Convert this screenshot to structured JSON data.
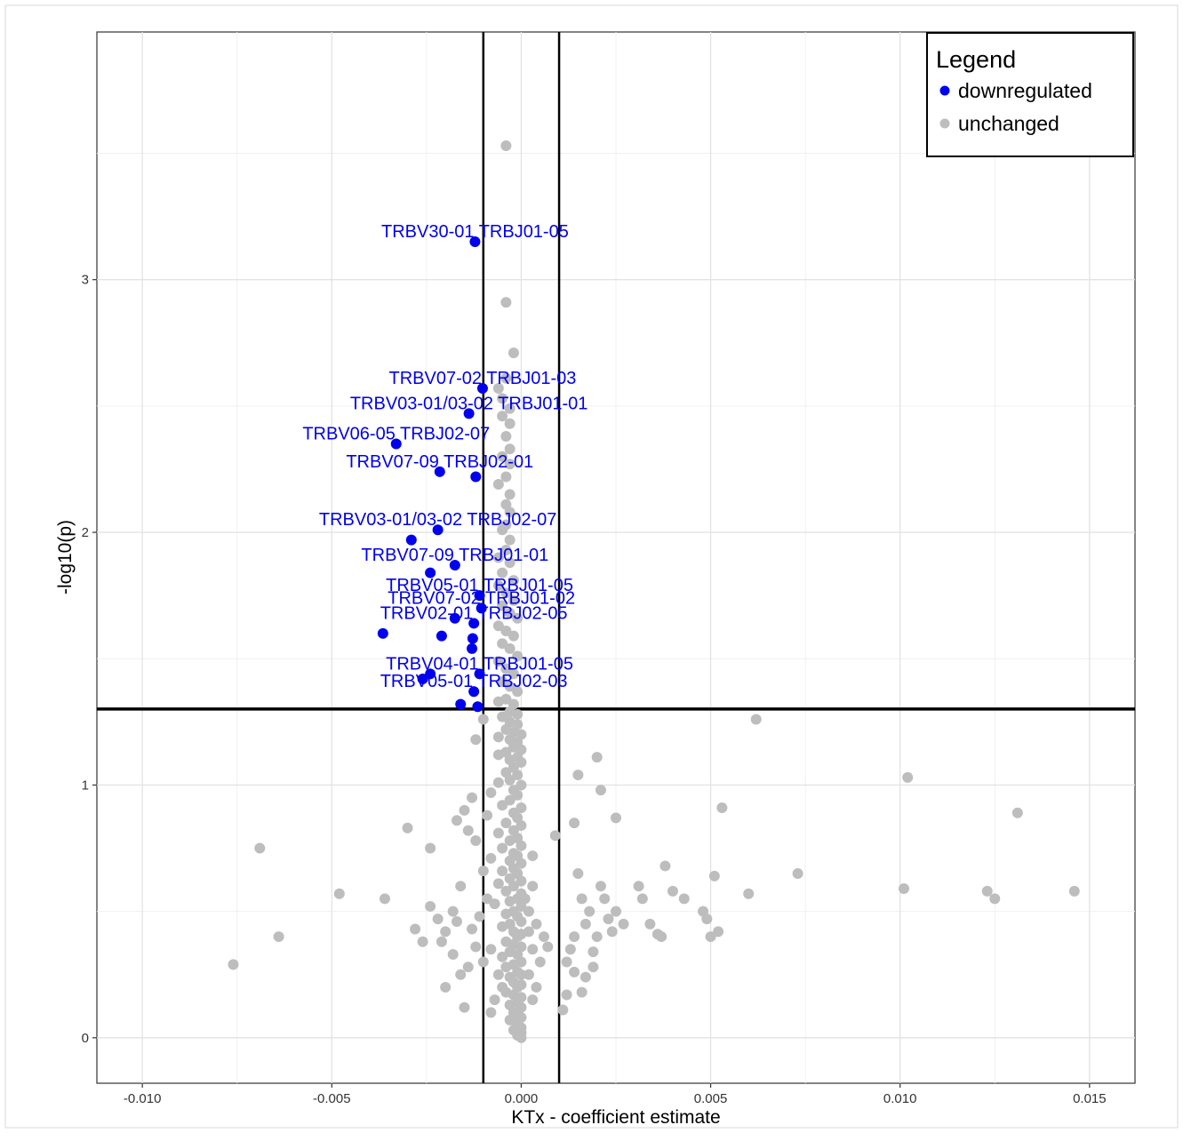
{
  "chart_data": {
    "type": "scatter",
    "xlabel": "KTx - coefficient estimate",
    "ylabel": "-log10(p)",
    "xlim": [
      -0.0112,
      0.0162
    ],
    "ylim": [
      -0.18,
      3.98
    ],
    "x_ticks": [
      -0.01,
      -0.005,
      0.0,
      0.005,
      0.01,
      0.015
    ],
    "x_tick_labels": [
      "-0.010",
      "-0.005",
      "0.000",
      "0.005",
      "0.010",
      "0.015"
    ],
    "y_ticks": [
      0,
      1,
      2,
      3
    ],
    "y_tick_labels": [
      "0",
      "1",
      "2",
      "3"
    ],
    "grid": true,
    "reference_lines": {
      "vertical": [
        -0.001,
        0.001
      ],
      "horizontal": [
        1.301
      ]
    },
    "legend": {
      "title": "Legend",
      "position": "top-right",
      "entries": [
        {
          "label": "downregulated",
          "color": "#0000ee"
        },
        {
          "label": "unchanged",
          "color": "#bdbdbd"
        }
      ]
    },
    "series": [
      {
        "name": "downregulated",
        "color": "#0000ee",
        "points": [
          [
            -0.00122,
            3.15
          ],
          [
            -0.00102,
            2.57
          ],
          [
            -0.00138,
            2.47
          ],
          [
            -0.0033,
            2.35
          ],
          [
            -0.00215,
            2.24
          ],
          [
            -0.0012,
            2.22
          ],
          [
            -0.0022,
            2.01
          ],
          [
            -0.0029,
            1.97
          ],
          [
            -0.00175,
            1.87
          ],
          [
            -0.0024,
            1.84
          ],
          [
            -0.0011,
            1.75
          ],
          [
            -0.00105,
            1.7
          ],
          [
            -0.00175,
            1.66
          ],
          [
            -0.00125,
            1.64
          ],
          [
            -0.00365,
            1.6
          ],
          [
            -0.0021,
            1.59
          ],
          [
            -0.00128,
            1.58
          ],
          [
            -0.0013,
            1.54
          ],
          [
            -0.0011,
            1.44
          ],
          [
            -0.0024,
            1.44
          ],
          [
            -0.0026,
            1.42
          ],
          [
            -0.00125,
            1.37
          ],
          [
            -0.0016,
            1.32
          ],
          [
            -0.00115,
            1.31
          ]
        ],
        "labels": [
          {
            "text": "TRBV30-01 TRBJ01-05",
            "x": -0.00122,
            "y": 3.15
          },
          {
            "text": "TRBV07-02 TRBJ01-03",
            "x": -0.00102,
            "y": 2.57
          },
          {
            "text": "TRBV03-01/03-02 TRBJ01-01",
            "x": -0.00138,
            "y": 2.47
          },
          {
            "text": "TRBV06-05 TRBJ02-07",
            "x": -0.0033,
            "y": 2.35
          },
          {
            "text": "TRBV07-09 TRBJ02-01",
            "x": -0.00215,
            "y": 2.24
          },
          {
            "text": "TRBV03-01/03-02 TRBJ02-07",
            "x": -0.0022,
            "y": 2.01
          },
          {
            "text": "TRBV07-09 TRBJ01-01",
            "x": -0.00175,
            "y": 1.87
          },
          {
            "text": "TRBV05-01 TRBJ01-05",
            "x": -0.0011,
            "y": 1.75
          },
          {
            "text": "TRBV07-02 TRBJ01-02",
            "x": -0.00105,
            "y": 1.7
          },
          {
            "text": "TRBV02-01 TRBJ02-05",
            "x": -0.00125,
            "y": 1.64
          },
          {
            "text": "TRBV04-01 TRBJ01-05",
            "x": -0.0011,
            "y": 1.44
          },
          {
            "text": "TRBV05-01 TRBJ02-03",
            "x": -0.00125,
            "y": 1.37
          }
        ]
      },
      {
        "name": "unchanged",
        "color": "#bdbdbd",
        "points": [
          [
            -0.0004,
            3.53
          ],
          [
            -0.0004,
            2.91
          ],
          [
            -0.0002,
            2.71
          ],
          [
            -0.0004,
            2.61
          ],
          [
            -0.0006,
            2.57
          ],
          [
            -0.0005,
            2.53
          ],
          [
            -0.0003,
            2.49
          ],
          [
            -0.0005,
            2.46
          ],
          [
            -0.0003,
            2.43
          ],
          [
            -0.0004,
            2.38
          ],
          [
            -0.0003,
            2.33
          ],
          [
            -0.0005,
            2.3
          ],
          [
            -0.0003,
            2.27
          ],
          [
            -0.0004,
            2.22
          ],
          [
            -0.0006,
            2.19
          ],
          [
            -0.0003,
            2.15
          ],
          [
            -0.0004,
            2.11
          ],
          [
            -0.0003,
            2.08
          ],
          [
            -0.0004,
            2.03
          ],
          [
            -0.0005,
            2.01
          ],
          [
            -0.0003,
            1.97
          ],
          [
            -0.0004,
            1.93
          ],
          [
            -0.0006,
            1.9
          ],
          [
            -0.0003,
            1.88
          ],
          [
            -0.0005,
            1.84
          ],
          [
            -0.0002,
            1.81
          ],
          [
            -0.0006,
            1.79
          ],
          [
            -0.0004,
            1.76
          ],
          [
            -0.0002,
            1.73
          ],
          [
            -0.0005,
            1.71
          ],
          [
            -0.0003,
            1.68
          ],
          [
            -0.0001,
            1.66
          ],
          [
            -0.0006,
            1.63
          ],
          [
            -0.0004,
            1.61
          ],
          [
            -0.0002,
            1.59
          ],
          [
            -0.0005,
            1.56
          ],
          [
            -0.0003,
            1.54
          ],
          [
            -0.0001,
            1.51
          ],
          [
            -0.0006,
            1.49
          ],
          [
            -0.0004,
            1.46
          ],
          [
            -0.0002,
            1.44
          ],
          [
            -0.0005,
            1.41
          ],
          [
            -0.0003,
            1.39
          ],
          [
            -0.0001,
            1.37
          ],
          [
            -0.0004,
            1.34
          ],
          [
            -0.0002,
            1.32
          ],
          [
            -0.0006,
            1.33
          ],
          [
            -0.0003,
            1.29
          ],
          [
            -0.0001,
            1.28
          ],
          [
            -0.0005,
            1.27
          ],
          [
            -0.0003,
            1.25
          ],
          [
            -0.0001,
            1.24
          ],
          [
            -0.001,
            1.26
          ],
          [
            -0.0004,
            1.22
          ],
          [
            -0.0002,
            1.21
          ],
          [
            0.0,
            1.2
          ],
          [
            -0.0003,
            1.18
          ],
          [
            -0.0001,
            1.17
          ],
          [
            -0.0006,
            1.19
          ],
          [
            -0.0012,
            1.18
          ],
          [
            -0.0002,
            1.15
          ],
          [
            0.0,
            1.14
          ],
          [
            -0.0004,
            1.13
          ],
          [
            -0.0001,
            1.11
          ],
          [
            -0.0003,
            1.1
          ],
          [
            -0.0006,
            1.12
          ],
          [
            0.0,
            1.09
          ],
          [
            -0.0002,
            1.07
          ],
          [
            -0.0004,
            1.05
          ],
          [
            -0.0001,
            1.04
          ],
          [
            -0.0003,
            1.02
          ],
          [
            -0.0006,
            1.01
          ],
          [
            0.0,
            1.0
          ],
          [
            -0.0002,
            0.98
          ],
          [
            -0.0008,
            0.97
          ],
          [
            -0.0001,
            0.96
          ],
          [
            -0.0003,
            0.94
          ],
          [
            -0.0005,
            0.92
          ],
          [
            0.0,
            0.91
          ],
          [
            -0.0002,
            0.89
          ],
          [
            -0.0013,
            0.95
          ],
          [
            -0.0015,
            0.9
          ],
          [
            -0.0017,
            0.86
          ],
          [
            -0.0009,
            0.88
          ],
          [
            -0.0001,
            0.87
          ],
          [
            -0.0004,
            0.85
          ],
          [
            0.0,
            0.84
          ],
          [
            -0.0002,
            0.82
          ],
          [
            -0.0006,
            0.81
          ],
          [
            -0.0001,
            0.79
          ],
          [
            -0.0003,
            0.78
          ],
          [
            0.0,
            0.76
          ],
          [
            -0.0005,
            0.75
          ],
          [
            -0.0002,
            0.73
          ],
          [
            -0.0001,
            0.72
          ],
          [
            -0.0008,
            0.71
          ],
          [
            -0.0003,
            0.7
          ],
          [
            0.0,
            0.69
          ],
          [
            -0.0002,
            0.67
          ],
          [
            -0.0005,
            0.66
          ],
          [
            -0.0001,
            0.65
          ],
          [
            -0.0003,
            0.63
          ],
          [
            0.0,
            0.62
          ],
          [
            -0.0006,
            0.61
          ],
          [
            -0.0002,
            0.6
          ],
          [
            -0.0004,
            0.58
          ],
          [
            0.0,
            0.57
          ],
          [
            -0.0001,
            0.55
          ],
          [
            -0.0003,
            0.54
          ],
          [
            -0.0007,
            0.53
          ],
          [
            0.0,
            0.52
          ],
          [
            -0.0002,
            0.5
          ],
          [
            -0.0004,
            0.49
          ],
          [
            -0.0001,
            0.48
          ],
          [
            0.0,
            0.46
          ],
          [
            -0.0003,
            0.45
          ],
          [
            -0.0005,
            0.44
          ],
          [
            -0.0002,
            0.42
          ],
          [
            0.0,
            0.41
          ],
          [
            -0.0001,
            0.4
          ],
          [
            -0.0004,
            0.38
          ],
          [
            -0.0002,
            0.37
          ],
          [
            0.0,
            0.36
          ],
          [
            -0.0003,
            0.34
          ],
          [
            -0.0001,
            0.33
          ],
          [
            -0.0005,
            0.32
          ],
          [
            0.0,
            0.3
          ],
          [
            -0.0002,
            0.29
          ],
          [
            -0.0004,
            0.28
          ],
          [
            -0.0001,
            0.26
          ],
          [
            0.0,
            0.25
          ],
          [
            -0.0003,
            0.24
          ],
          [
            -0.0002,
            0.22
          ],
          [
            0.0,
            0.21
          ],
          [
            -0.0001,
            0.2
          ],
          [
            -0.0004,
            0.18
          ],
          [
            -0.0002,
            0.17
          ],
          [
            0.0,
            0.16
          ],
          [
            -0.0001,
            0.14
          ],
          [
            -0.0003,
            0.13
          ],
          [
            0.0,
            0.12
          ],
          [
            -0.0002,
            0.1
          ],
          [
            -0.0001,
            0.09
          ],
          [
            0.0,
            0.08
          ],
          [
            -0.0003,
            0.07
          ],
          [
            -0.0001,
            0.05
          ],
          [
            0.0,
            0.04
          ],
          [
            -0.0002,
            0.03
          ],
          [
            0.0,
            0.02
          ],
          [
            -0.0001,
            0.01
          ],
          [
            0.0,
            0.0
          ],
          [
            -0.0005,
            0.2
          ],
          [
            -0.0007,
            0.15
          ],
          [
            -0.0006,
            0.25
          ],
          [
            -0.0008,
            0.35
          ],
          [
            0.0003,
            0.6
          ],
          [
            0.0002,
            0.5
          ],
          [
            0.0004,
            0.45
          ],
          [
            0.0006,
            0.4
          ],
          [
            0.0005,
            0.3
          ],
          [
            0.0003,
            0.35
          ],
          [
            0.0002,
            0.25
          ],
          [
            0.0004,
            0.2
          ],
          [
            0.0007,
            0.36
          ],
          [
            0.0003,
            0.15
          ],
          [
            0.0002,
            0.42
          ],
          [
            0.0001,
            0.55
          ],
          [
            0.0003,
            0.72
          ],
          [
            0.0009,
            0.8
          ],
          [
            0.0011,
            0.11
          ],
          [
            0.0015,
            0.65
          ],
          [
            0.0016,
            0.55
          ],
          [
            0.0017,
            0.45
          ],
          [
            0.0014,
            0.4
          ],
          [
            0.0013,
            0.35
          ],
          [
            0.0012,
            0.3
          ],
          [
            0.0018,
            0.5
          ],
          [
            0.0019,
            0.28
          ],
          [
            0.0016,
            0.18
          ],
          [
            0.002,
            0.4
          ],
          [
            0.0021,
            0.6
          ],
          [
            0.0022,
            0.55
          ],
          [
            0.0023,
            0.47
          ],
          [
            0.0024,
            0.42
          ],
          [
            0.0025,
            0.5
          ],
          [
            0.0027,
            0.45
          ],
          [
            0.0019,
            0.34
          ],
          [
            0.0017,
            0.24
          ],
          [
            0.0014,
            0.26
          ],
          [
            0.0012,
            0.17
          ],
          [
            0.0015,
            1.04
          ],
          [
            0.0014,
            0.85
          ],
          [
            0.002,
            1.11
          ],
          [
            0.0021,
            0.98
          ],
          [
            0.0025,
            0.87
          ],
          [
            0.0031,
            0.6
          ],
          [
            0.0032,
            0.55
          ],
          [
            0.0034,
            0.45
          ],
          [
            0.0036,
            0.41
          ],
          [
            0.0037,
            0.4
          ],
          [
            0.0038,
            0.68
          ],
          [
            0.004,
            0.58
          ],
          [
            0.0043,
            0.55
          ],
          [
            0.0048,
            0.5
          ],
          [
            0.0049,
            0.47
          ],
          [
            0.005,
            0.4
          ],
          [
            0.0052,
            0.42
          ],
          [
            0.0053,
            0.91
          ],
          [
            0.0051,
            0.64
          ],
          [
            0.006,
            0.57
          ],
          [
            0.0062,
            1.26
          ],
          [
            0.0073,
            0.65
          ],
          [
            0.0101,
            0.59
          ],
          [
            0.0102,
            1.03
          ],
          [
            0.0123,
            0.58
          ],
          [
            0.0125,
            0.55
          ],
          [
            0.0131,
            0.89
          ],
          [
            0.0146,
            0.58
          ],
          [
            -0.0014,
            0.82
          ],
          [
            -0.0012,
            0.78
          ],
          [
            -0.001,
            0.66
          ],
          [
            -0.0016,
            0.6
          ],
          [
            -0.0018,
            0.5
          ],
          [
            -0.002,
            0.42
          ],
          [
            -0.0022,
            0.47
          ],
          [
            -0.0024,
            0.52
          ],
          [
            -0.0026,
            0.38
          ],
          [
            -0.0028,
            0.43
          ],
          [
            -0.0012,
            0.36
          ],
          [
            -0.001,
            0.3
          ],
          [
            -0.0014,
            0.28
          ],
          [
            -0.0016,
            0.25
          ],
          [
            -0.0018,
            0.33
          ],
          [
            -0.002,
            0.2
          ],
          [
            -0.0015,
            0.12
          ],
          [
            -0.0008,
            0.1
          ],
          [
            -0.0009,
            0.55
          ],
          [
            -0.0011,
            0.48
          ],
          [
            -0.003,
            0.83
          ],
          [
            -0.0024,
            0.75
          ],
          [
            -0.0036,
            0.55
          ],
          [
            -0.0048,
            0.57
          ],
          [
            -0.0064,
            0.4
          ],
          [
            -0.0069,
            0.75
          ],
          [
            -0.0076,
            0.29
          ],
          [
            -0.0013,
            0.43
          ],
          [
            -0.0017,
            0.46
          ],
          [
            -0.0021,
            0.38
          ]
        ]
      }
    ]
  }
}
